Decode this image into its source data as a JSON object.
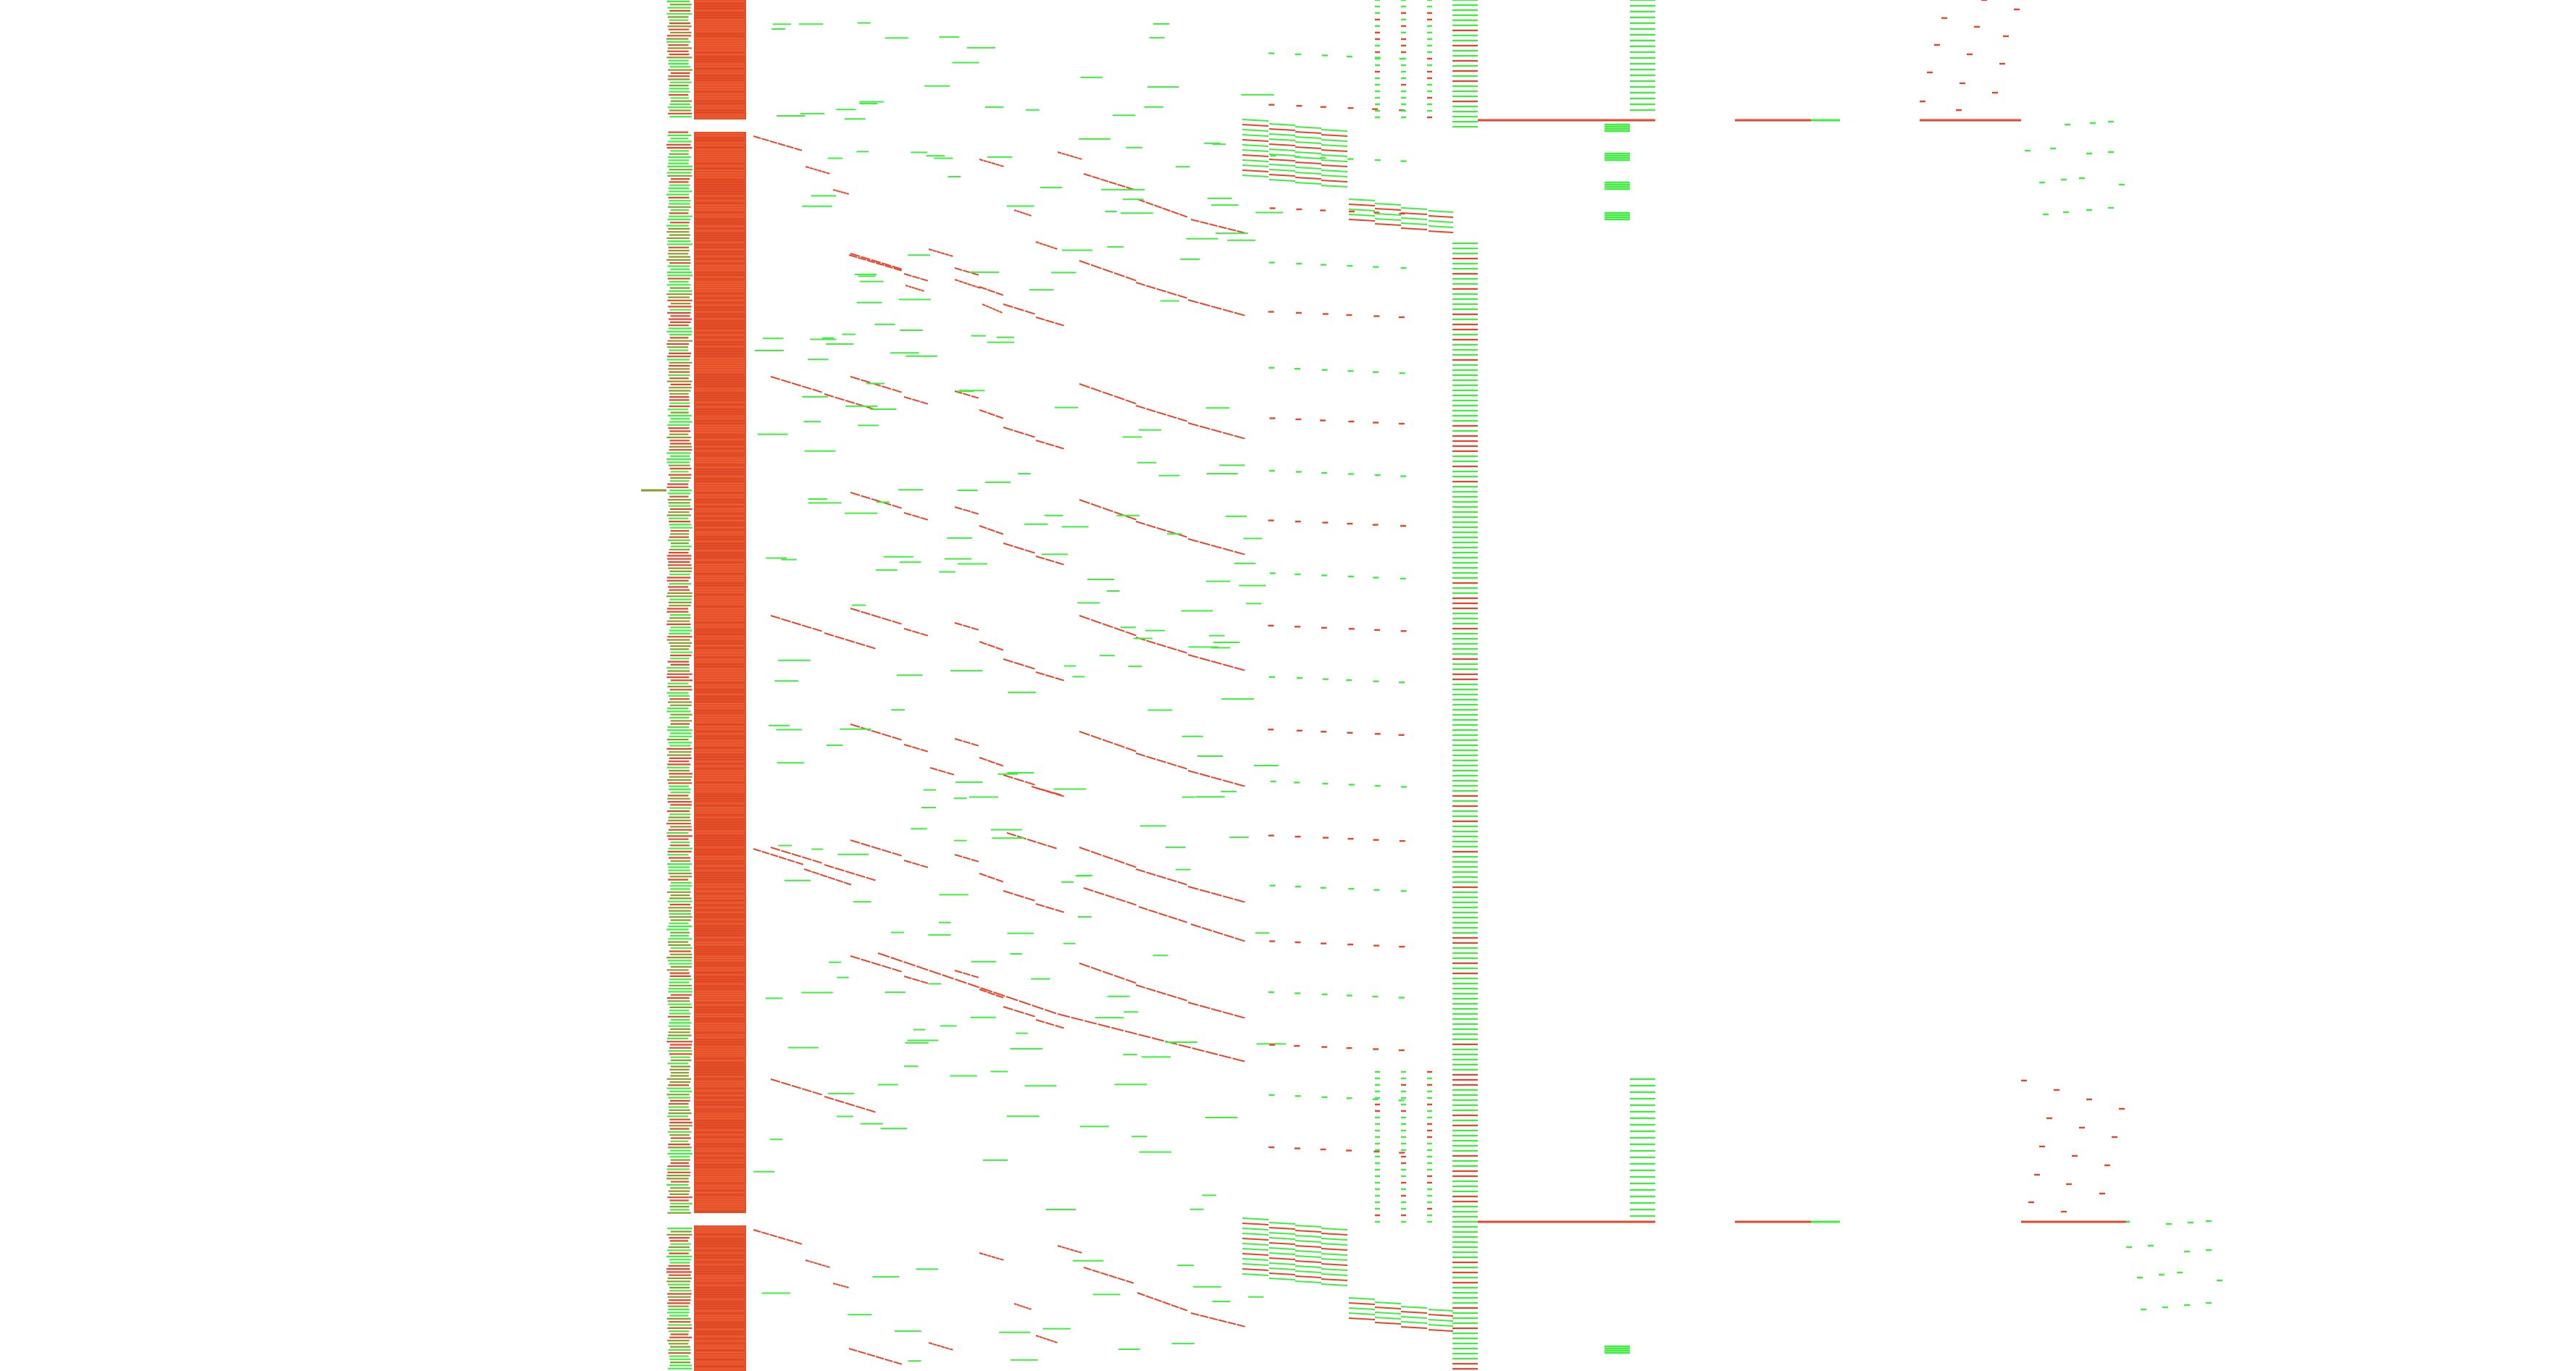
{
  "colors": {
    "background": "#ffffff",
    "red": "#e8442a",
    "red_dark": "#d93a22",
    "green": "#3cf03c",
    "green_dark": "#22cc22",
    "olive": "#8a9a2a",
    "column_fill": "#e5502a"
  },
  "visualization": {
    "kind": "timeline-trace",
    "description_visible_text": ""
  }
}
